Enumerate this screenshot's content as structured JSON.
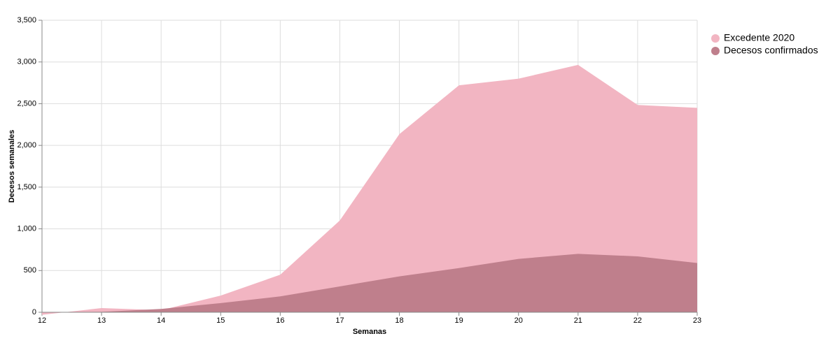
{
  "chart_data": {
    "type": "area",
    "x_label": "Semanas",
    "y_label": "Decesos semanales",
    "x": [
      12,
      13,
      14,
      15,
      16,
      17,
      18,
      19,
      20,
      21,
      22,
      23
    ],
    "series": [
      {
        "name": "Excedente 2020",
        "color": "#f2b5c2",
        "values": [
          -30,
          50,
          25,
          200,
          450,
          1100,
          2135,
          2720,
          2800,
          2965,
          2485,
          2450
        ]
      },
      {
        "name": "Decesos confirmados",
        "color": "#bf7f8c",
        "values": [
          0,
          5,
          40,
          110,
          190,
          310,
          430,
          530,
          640,
          700,
          670,
          590
        ]
      }
    ],
    "xlim": [
      12,
      23
    ],
    "xticks": [
      12,
      13,
      14,
      15,
      16,
      17,
      18,
      19,
      20,
      21,
      22,
      23
    ],
    "ylim": [
      0,
      3500
    ],
    "yticks": [
      0,
      500,
      {
        "value": 1000,
        "label": "1,000"
      },
      {
        "value": 1500,
        "label": "1,500"
      },
      {
        "value": 2000,
        "label": "2,000"
      },
      {
        "value": 2500,
        "label": "2,500"
      },
      {
        "value": 3000,
        "label": "3,000"
      },
      {
        "value": 3500,
        "label": "3,500"
      }
    ],
    "grid": true,
    "legend": "top-right"
  }
}
